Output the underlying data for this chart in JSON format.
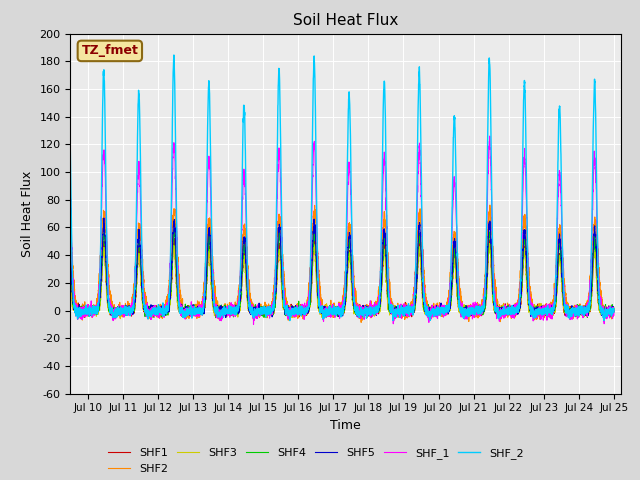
{
  "title": "Soil Heat Flux",
  "xlabel": "Time",
  "ylabel": "Soil Heat Flux",
  "ylim": [
    -60,
    200
  ],
  "yticks": [
    -60,
    -40,
    -20,
    0,
    20,
    40,
    60,
    80,
    100,
    120,
    140,
    160,
    180,
    200
  ],
  "xlim_start": 9.5,
  "xlim_end": 25.2,
  "xtick_positions": [
    10,
    11,
    12,
    13,
    14,
    15,
    16,
    17,
    18,
    19,
    20,
    21,
    22,
    23,
    24,
    25
  ],
  "xtick_labels": [
    "Jul 10",
    "Jul 11",
    "Jul 12",
    "Jul 13",
    "Jul 14",
    "Jul 15",
    "Jul 16",
    "Jul 17",
    "Jul 18",
    "Jul 19",
    "Jul 20",
    "Jul 21",
    "Jul 22",
    "Jul 23",
    "Jul 24",
    "Jul 25"
  ],
  "series_colors": {
    "SHF1": "#cc0000",
    "SHF2": "#ff8800",
    "SHF3": "#cccc00",
    "SHF4": "#00cc00",
    "SHF5": "#0000cc",
    "SHF_1": "#ff00ff",
    "SHF_2": "#00ccff"
  },
  "legend_label": "TZ_fmet",
  "background_color": "#d8d8d8",
  "plot_bg_color": "#ebebeb",
  "grid_color": "#ffffff"
}
